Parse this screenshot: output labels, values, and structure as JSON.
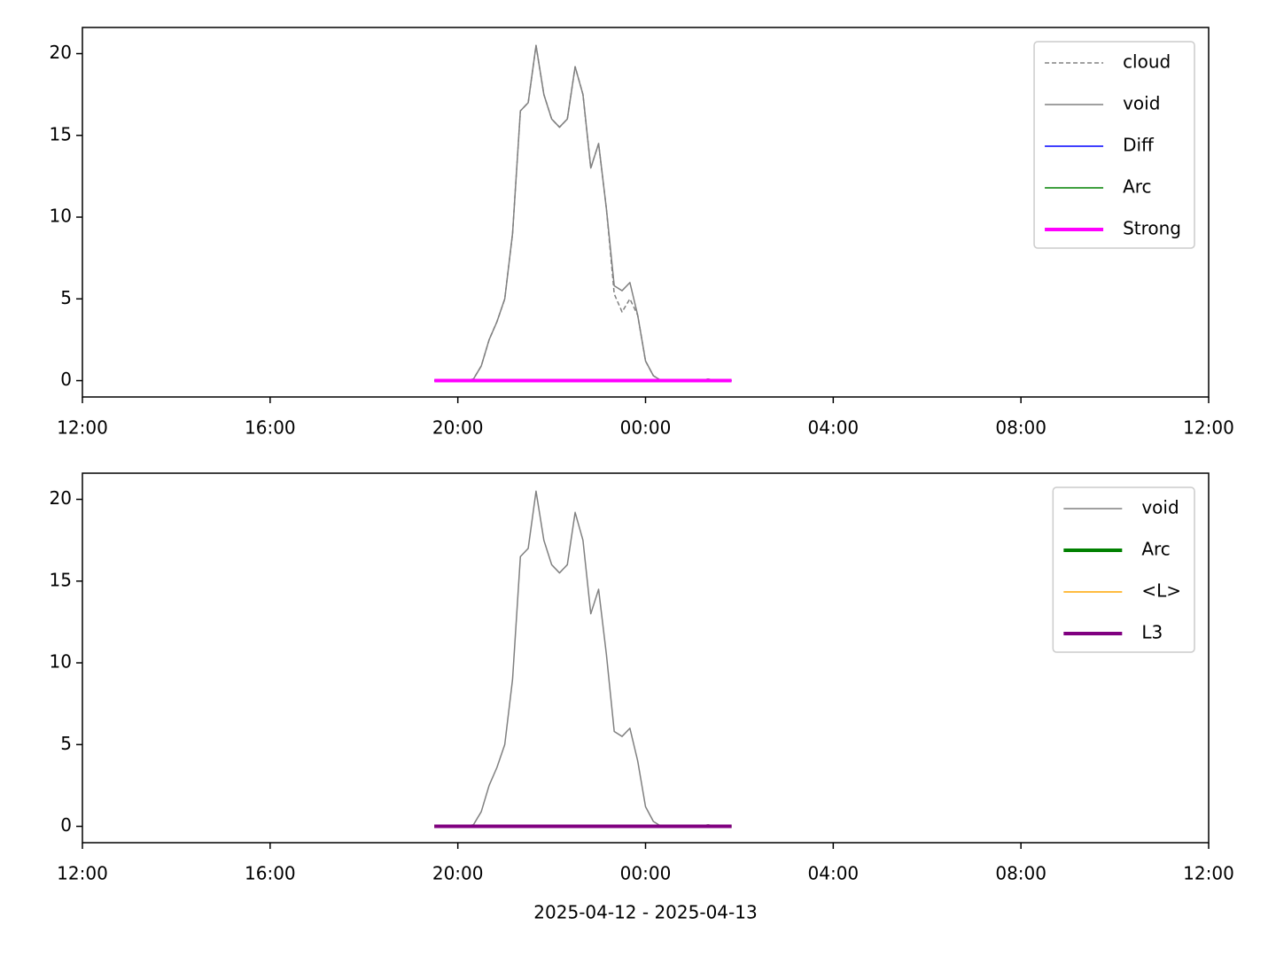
{
  "chart_data": [
    {
      "type": "line",
      "x": [
        "2025-04-12T19:30",
        "2025-04-12T19:40",
        "2025-04-12T19:50",
        "2025-04-12T20:00",
        "2025-04-12T20:10",
        "2025-04-12T20:20",
        "2025-04-12T20:30",
        "2025-04-12T20:40",
        "2025-04-12T20:50",
        "2025-04-12T21:00",
        "2025-04-12T21:10",
        "2025-04-12T21:20",
        "2025-04-12T21:30",
        "2025-04-12T21:40",
        "2025-04-12T21:50",
        "2025-04-12T22:00",
        "2025-04-12T22:10",
        "2025-04-12T22:20",
        "2025-04-12T22:30",
        "2025-04-12T22:40",
        "2025-04-12T22:50",
        "2025-04-12T23:00",
        "2025-04-12T23:10",
        "2025-04-12T23:20",
        "2025-04-12T23:30",
        "2025-04-12T23:40",
        "2025-04-12T23:50",
        "2025-04-13T00:00",
        "2025-04-13T00:10",
        "2025-04-13T00:20",
        "2025-04-13T00:30",
        "2025-04-13T00:40",
        "2025-04-13T00:50",
        "2025-04-13T01:00",
        "2025-04-13T01:10",
        "2025-04-13T01:20",
        "2025-04-13T01:30",
        "2025-04-13T01:40",
        "2025-04-13T01:50"
      ],
      "series": [
        {
          "name": "cloud",
          "color": "#808080",
          "dash": true,
          "width": 1.5,
          "values": [
            0,
            0,
            0,
            0,
            0,
            0.1,
            0.9,
            2.5,
            3.6,
            5.0,
            9.0,
            16.5,
            17.0,
            20.5,
            17.5,
            16.0,
            15.5,
            16.0,
            19.2,
            17.5,
            13.0,
            14.5,
            10.5,
            5.3,
            4.2,
            5.0,
            4.0,
            1.2,
            0.3,
            0,
            0,
            0,
            0,
            0,
            0,
            0.1,
            0,
            0,
            0
          ]
        },
        {
          "name": "void",
          "color": "#808080",
          "width": 1.5,
          "values": [
            0,
            0,
            0,
            0,
            0,
            0.1,
            0.9,
            2.5,
            3.6,
            5.0,
            9.0,
            16.5,
            17.0,
            20.5,
            17.5,
            16.0,
            15.5,
            16.0,
            19.2,
            17.5,
            13.0,
            14.5,
            10.5,
            5.8,
            5.5,
            6.0,
            4.0,
            1.2,
            0.3,
            0,
            0,
            0,
            0,
            0,
            0,
            0.1,
            0,
            0,
            0
          ]
        },
        {
          "name": "Diff",
          "color": "#0000ff",
          "width": 1.5,
          "values": [
            0,
            0,
            0,
            0,
            0,
            0,
            0,
            0,
            0,
            0,
            0,
            0,
            0,
            0,
            0,
            0,
            0,
            0,
            0,
            0,
            0,
            0,
            0,
            0,
            0,
            0,
            0,
            0,
            0,
            0,
            0,
            0,
            0,
            0,
            0,
            0,
            0,
            0,
            0
          ]
        },
        {
          "name": "Arc",
          "color": "#008000",
          "width": 1.5,
          "values": [
            0,
            0,
            0,
            0,
            0,
            0,
            0,
            0,
            0,
            0,
            0,
            0,
            0,
            0,
            0,
            0,
            0,
            0,
            0,
            0,
            0,
            0,
            0,
            0,
            0,
            0,
            0,
            0,
            0,
            0,
            0,
            0,
            0,
            0,
            0,
            0,
            0,
            0,
            0
          ]
        },
        {
          "name": "Strong",
          "color": "#ff00ff",
          "width": 4,
          "values": [
            0,
            0,
            0,
            0,
            0,
            0,
            0,
            0,
            0,
            0,
            0,
            0,
            0,
            0,
            0,
            0,
            0,
            0,
            0,
            0,
            0,
            0,
            0,
            0,
            0,
            0,
            0,
            0,
            0,
            0,
            0,
            0,
            0,
            0,
            0,
            0,
            0,
            0,
            0
          ]
        }
      ],
      "xlim": [
        "2025-04-12T12:00",
        "2025-04-13T12:00"
      ],
      "xticks": [
        {
          "value": "2025-04-12T12:00",
          "label": "12:00"
        },
        {
          "value": "2025-04-12T16:00",
          "label": "16:00"
        },
        {
          "value": "2025-04-12T20:00",
          "label": "20:00"
        },
        {
          "value": "2025-04-13T00:00",
          "label": "00:00"
        },
        {
          "value": "2025-04-13T04:00",
          "label": "04:00"
        },
        {
          "value": "2025-04-13T08:00",
          "label": "08:00"
        },
        {
          "value": "2025-04-13T12:00",
          "label": "12:00"
        }
      ],
      "ylim": [
        -1.0,
        21.6
      ],
      "yticks": [
        0,
        5,
        10,
        15,
        20
      ],
      "legend": "upper right"
    },
    {
      "type": "line",
      "x": [
        "2025-04-12T19:30",
        "2025-04-12T19:40",
        "2025-04-12T19:50",
        "2025-04-12T20:00",
        "2025-04-12T20:10",
        "2025-04-12T20:20",
        "2025-04-12T20:30",
        "2025-04-12T20:40",
        "2025-04-12T20:50",
        "2025-04-12T21:00",
        "2025-04-12T21:10",
        "2025-04-12T21:20",
        "2025-04-12T21:30",
        "2025-04-12T21:40",
        "2025-04-12T21:50",
        "2025-04-12T22:00",
        "2025-04-12T22:10",
        "2025-04-12T22:20",
        "2025-04-12T22:30",
        "2025-04-12T22:40",
        "2025-04-12T22:50",
        "2025-04-12T23:00",
        "2025-04-12T23:10",
        "2025-04-12T23:20",
        "2025-04-12T23:30",
        "2025-04-12T23:40",
        "2025-04-12T23:50",
        "2025-04-13T00:00",
        "2025-04-13T00:10",
        "2025-04-13T00:20",
        "2025-04-13T00:30",
        "2025-04-13T00:40",
        "2025-04-13T00:50",
        "2025-04-13T01:00",
        "2025-04-13T01:10",
        "2025-04-13T01:20",
        "2025-04-13T01:30",
        "2025-04-13T01:40",
        "2025-04-13T01:50"
      ],
      "series": [
        {
          "name": "void",
          "color": "#808080",
          "width": 1.5,
          "values": [
            0,
            0,
            0,
            0,
            0,
            0.1,
            0.9,
            2.5,
            3.6,
            5.0,
            9.0,
            16.5,
            17.0,
            20.5,
            17.5,
            16.0,
            15.5,
            16.0,
            19.2,
            17.5,
            13.0,
            14.5,
            10.5,
            5.8,
            5.5,
            6.0,
            4.0,
            1.2,
            0.3,
            0,
            0,
            0,
            0,
            0,
            0,
            0.1,
            0,
            0,
            0
          ]
        },
        {
          "name": "Arc",
          "color": "#008000",
          "width": 4,
          "values": [
            0,
            0,
            0,
            0,
            0,
            0,
            0,
            0,
            0,
            0,
            0,
            0,
            0,
            0,
            0,
            0,
            0,
            0,
            0,
            0,
            0,
            0,
            0,
            0,
            0,
            0,
            0,
            0,
            0,
            0,
            0,
            0,
            0,
            0,
            0,
            0,
            0,
            0,
            0
          ]
        },
        {
          "name": "<L>",
          "color": "#ffa500",
          "width": 1.5,
          "values": [
            0,
            0,
            0,
            0,
            0,
            0,
            0,
            0,
            0,
            0,
            0,
            0,
            0,
            0,
            0,
            0,
            0,
            0,
            0,
            0,
            0,
            0,
            0,
            0,
            0,
            0,
            0,
            0,
            0,
            0,
            0,
            0,
            0,
            0,
            0,
            0,
            0,
            0,
            0
          ]
        },
        {
          "name": "L3",
          "color": "#800080",
          "width": 4,
          "values": [
            0,
            0,
            0,
            0,
            0,
            0,
            0,
            0,
            0,
            0,
            0,
            0,
            0,
            0,
            0,
            0,
            0,
            0,
            0,
            0,
            0,
            0,
            0,
            0,
            0,
            0,
            0,
            0,
            0,
            0,
            0,
            0,
            0,
            0,
            0,
            0,
            0,
            0,
            0
          ]
        }
      ],
      "xlim": [
        "2025-04-12T12:00",
        "2025-04-13T12:00"
      ],
      "xticks": [
        {
          "value": "2025-04-12T12:00",
          "label": "12:00"
        },
        {
          "value": "2025-04-12T16:00",
          "label": "16:00"
        },
        {
          "value": "2025-04-12T20:00",
          "label": "20:00"
        },
        {
          "value": "2025-04-13T00:00",
          "label": "00:00"
        },
        {
          "value": "2025-04-13T04:00",
          "label": "04:00"
        },
        {
          "value": "2025-04-13T08:00",
          "label": "08:00"
        },
        {
          "value": "2025-04-13T12:00",
          "label": "12:00"
        }
      ],
      "ylim": [
        -1.0,
        21.6
      ],
      "yticks": [
        0,
        5,
        10,
        15,
        20
      ],
      "legend": "upper right",
      "xlabel": "2025-04-12 - 2025-04-13"
    }
  ]
}
